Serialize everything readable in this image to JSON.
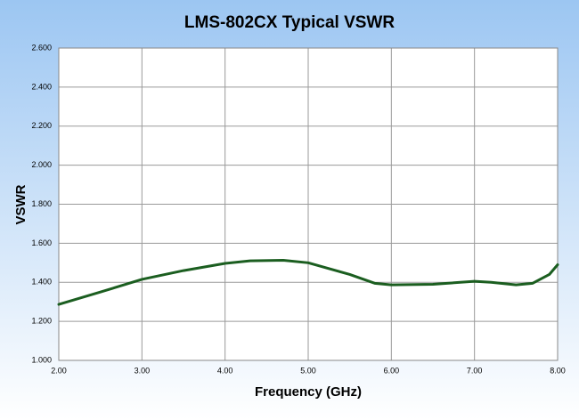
{
  "chart_data": {
    "type": "line",
    "title": "LMS-802CX Typical VSWR",
    "x_label": "Frequency (GHz)",
    "y_label": "VSWR",
    "x": [
      2.0,
      2.5,
      3.0,
      3.5,
      4.0,
      4.3,
      4.7,
      5.0,
      5.5,
      5.8,
      6.0,
      6.5,
      7.0,
      7.2,
      7.5,
      7.7,
      7.9,
      8.0
    ],
    "series": [
      {
        "name": "VSWR",
        "color": "#1b5e20",
        "values": [
          1.287,
          1.35,
          1.415,
          1.46,
          1.497,
          1.51,
          1.513,
          1.5,
          1.44,
          1.395,
          1.387,
          1.39,
          1.405,
          1.4,
          1.387,
          1.395,
          1.44,
          1.49
        ]
      }
    ],
    "xlim": [
      2,
      8
    ],
    "xticks": [
      {
        "value": 2,
        "label": "2.00"
      },
      {
        "value": 3,
        "label": "3.00"
      },
      {
        "value": 4,
        "label": "4.00"
      },
      {
        "value": 5,
        "label": "5.00"
      },
      {
        "value": 6,
        "label": "6.00"
      },
      {
        "value": 7,
        "label": "7.00"
      },
      {
        "value": 8,
        "label": "8.00"
      }
    ],
    "ylim": [
      1,
      2.6
    ],
    "yticks": [
      {
        "value": 1,
        "label": "1.000"
      },
      {
        "value": 1.2,
        "label": "1.200"
      },
      {
        "value": 1.4,
        "label": "1.400"
      },
      {
        "value": 1.6,
        "label": "1.600"
      },
      {
        "value": 1.8,
        "label": "1.800"
      },
      {
        "value": 2,
        "label": "2.000"
      },
      {
        "value": 2.2,
        "label": "2.200"
      },
      {
        "value": 2.4,
        "label": "2.400"
      },
      {
        "value": 2.6,
        "label": "2.600"
      }
    ],
    "grid": true
  }
}
